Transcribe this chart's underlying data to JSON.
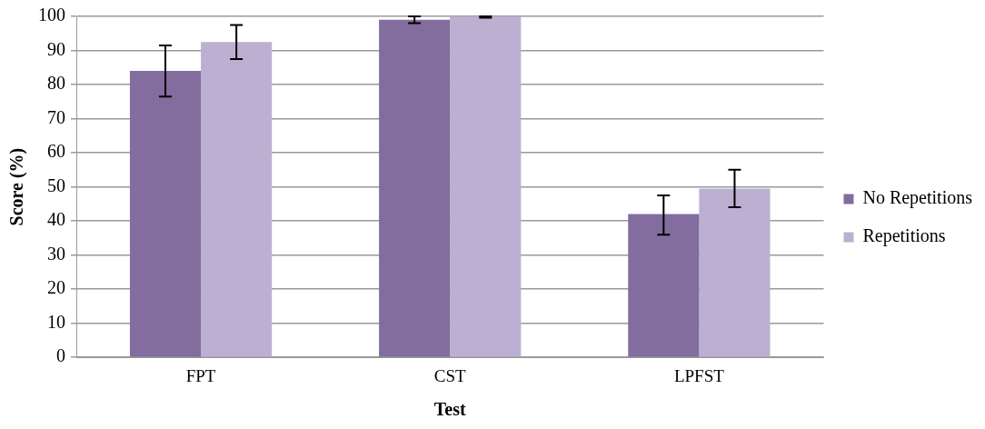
{
  "chart_data": {
    "type": "bar",
    "xlabel": "Test",
    "ylabel": "Score (%)",
    "categories": [
      "FPT",
      "CST",
      "LPFST"
    ],
    "series": [
      {
        "name": "No Repetitions",
        "color": "#836c9e",
        "values": [
          84,
          99,
          42
        ],
        "errors": [
          7.5,
          1,
          [
            36,
            47.5
          ]
        ]
      },
      {
        "name": "Repetitions",
        "color": "#bcb0d2",
        "values": [
          92.5,
          100,
          49.5
        ],
        "errors": [
          5,
          [
            99.6,
            100
          ],
          5.5
        ]
      }
    ],
    "ylim": [
      0,
      100
    ],
    "yticks": [
      0,
      10,
      20,
      30,
      40,
      50,
      60,
      70,
      80,
      90,
      100
    ],
    "grid": "y",
    "legend": "right"
  }
}
